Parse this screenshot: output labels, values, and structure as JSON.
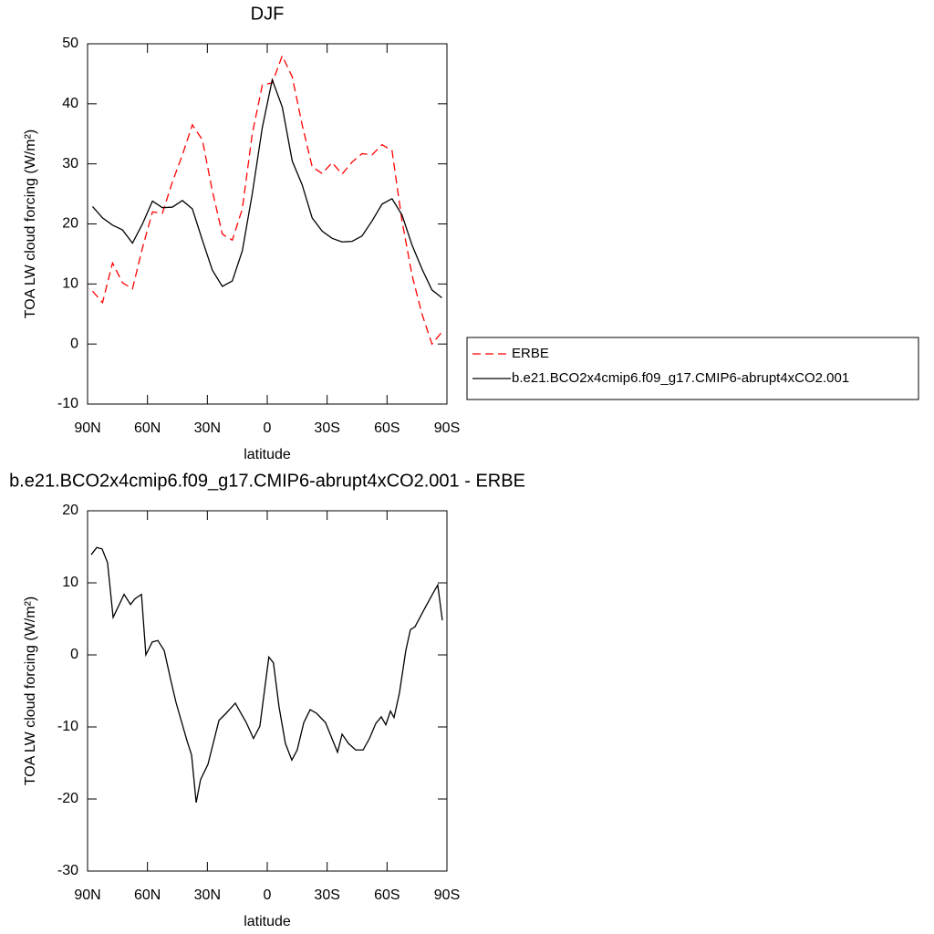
{
  "chart_data": [
    {
      "type": "line",
      "title": "DJF",
      "xlabel": "latitude",
      "ylabel": "TOA LW cloud forcing (W/m²)",
      "x": [
        87.5,
        82.5,
        77.5,
        72.5,
        67.5,
        62.5,
        57.5,
        52.5,
        47.5,
        42.5,
        37.5,
        32.5,
        27.5,
        22.5,
        17.5,
        12.5,
        7.5,
        2.5,
        -2.5,
        -7.5,
        -12.5,
        -17.5,
        -22.5,
        -27.5,
        -32.5,
        -37.5,
        -42.5,
        -47.5,
        -52.5,
        -57.5,
        -62.5,
        -67.5,
        -72.5,
        -77.5,
        -82.5,
        -87.5
      ],
      "series": [
        {
          "name": "ERBE",
          "color": "#ff0000",
          "dash": true,
          "values": [
            8.8,
            6.9,
            13.5,
            10.2,
            9.2,
            16,
            22,
            21.8,
            27,
            31.5,
            36.5,
            34,
            25.5,
            18.3,
            17.3,
            22.5,
            35,
            43.1,
            43.5,
            48,
            44.5,
            36.5,
            29.5,
            28.4,
            30.2,
            28.3,
            30.3,
            31.7,
            31.5,
            33.2,
            32.2,
            20.5,
            11.5,
            5,
            0,
            2
          ]
        },
        {
          "name": "b.e21.BCO2x4cmip6.f09_g17.CMIP6-abrupt4xCO2.001",
          "color": "#000000",
          "dash": false,
          "values": [
            22.9,
            21,
            19.8,
            19,
            16.8,
            20,
            23.8,
            22.7,
            22.8,
            23.9,
            22.5,
            17.3,
            12.3,
            9.6,
            10.5,
            15.5,
            25,
            36,
            44,
            39.5,
            30.5,
            26.5,
            21,
            18.8,
            17.6,
            17,
            17.1,
            18,
            20.5,
            23.3,
            24.2,
            21.5,
            16.5,
            12.5,
            9,
            7.7
          ]
        }
      ],
      "xlim": [
        90,
        -90
      ],
      "xticks": [
        {
          "value": 90,
          "label": "90N"
        },
        {
          "value": 60,
          "label": "60N"
        },
        {
          "value": 30,
          "label": "30N"
        },
        0,
        {
          "value": -30,
          "label": "30S"
        },
        {
          "value": -60,
          "label": "60S"
        },
        {
          "value": -90,
          "label": "90S"
        }
      ],
      "ylim": [
        -10,
        50
      ],
      "yticks": [
        -10,
        0,
        10,
        20,
        30,
        40,
        50
      ],
      "legend": "outside-right"
    },
    {
      "type": "line",
      "title": "b.e21.BCO2x4cmip6.f09_g17.CMIP6-abrupt4xCO2.001 - ERBE",
      "xlabel": "latitude",
      "ylabel": "TOA LW cloud forcing (W/m²)",
      "x": [
        88.2,
        85.4,
        82.7,
        80,
        77.2,
        71.7,
        68.5,
        66.2,
        63,
        60.8,
        57.6,
        54.8,
        51.6,
        48.4,
        45.7,
        40.2,
        37.9,
        35.6,
        33.4,
        29.7,
        24.2,
        20.6,
        16,
        10.5,
        6.9,
        3.7,
        -0.8,
        -3.1,
        -5.9,
        -9.1,
        -12.3,
        -15,
        -18.3,
        -21.5,
        -24.7,
        -29.2,
        -32.4,
        -35.2,
        -37.5,
        -40.7,
        -44.3,
        -48,
        -51.2,
        -54.4,
        -57.1,
        -59.4,
        -61.7,
        -63.5,
        -66.2,
        -69.4,
        -71.7,
        -74,
        -78.6,
        -83.1,
        -85.4,
        -87.7
      ],
      "series": [
        {
          "color": "#000000",
          "dash": false,
          "values": [
            13.9,
            14.9,
            14.7,
            12.8,
            5.2,
            8.4,
            7,
            7.8,
            8.4,
            0,
            1.8,
            2,
            0.6,
            -3.4,
            -6.6,
            -11.9,
            -13.9,
            -20.5,
            -17.3,
            -15.2,
            -9.1,
            -8.1,
            -6.7,
            -9.4,
            -11.6,
            -9.9,
            -0.3,
            -1.1,
            -7.2,
            -12.3,
            -14.6,
            -13.2,
            -9.4,
            -7.6,
            -8.1,
            -9.4,
            -11.6,
            -13.5,
            -11,
            -12.3,
            -13.2,
            -13.2,
            -11.6,
            -9.5,
            -8.6,
            -9.7,
            -7.8,
            -8.7,
            -5.3,
            0.6,
            3.5,
            3.9,
            6.3,
            8.6,
            9.7,
            4.8
          ]
        }
      ],
      "xlim": [
        90,
        -90
      ],
      "xticks": [
        {
          "value": 90,
          "label": "90N"
        },
        {
          "value": 60,
          "label": "60N"
        },
        {
          "value": 30,
          "label": "30N"
        },
        0,
        {
          "value": -30,
          "label": "30S"
        },
        {
          "value": -60,
          "label": "60S"
        },
        {
          "value": -90,
          "label": "90S"
        }
      ],
      "ylim": [
        -30,
        20
      ],
      "yticks": [
        -30,
        -20,
        -10,
        0,
        10,
        20
      ]
    }
  ]
}
